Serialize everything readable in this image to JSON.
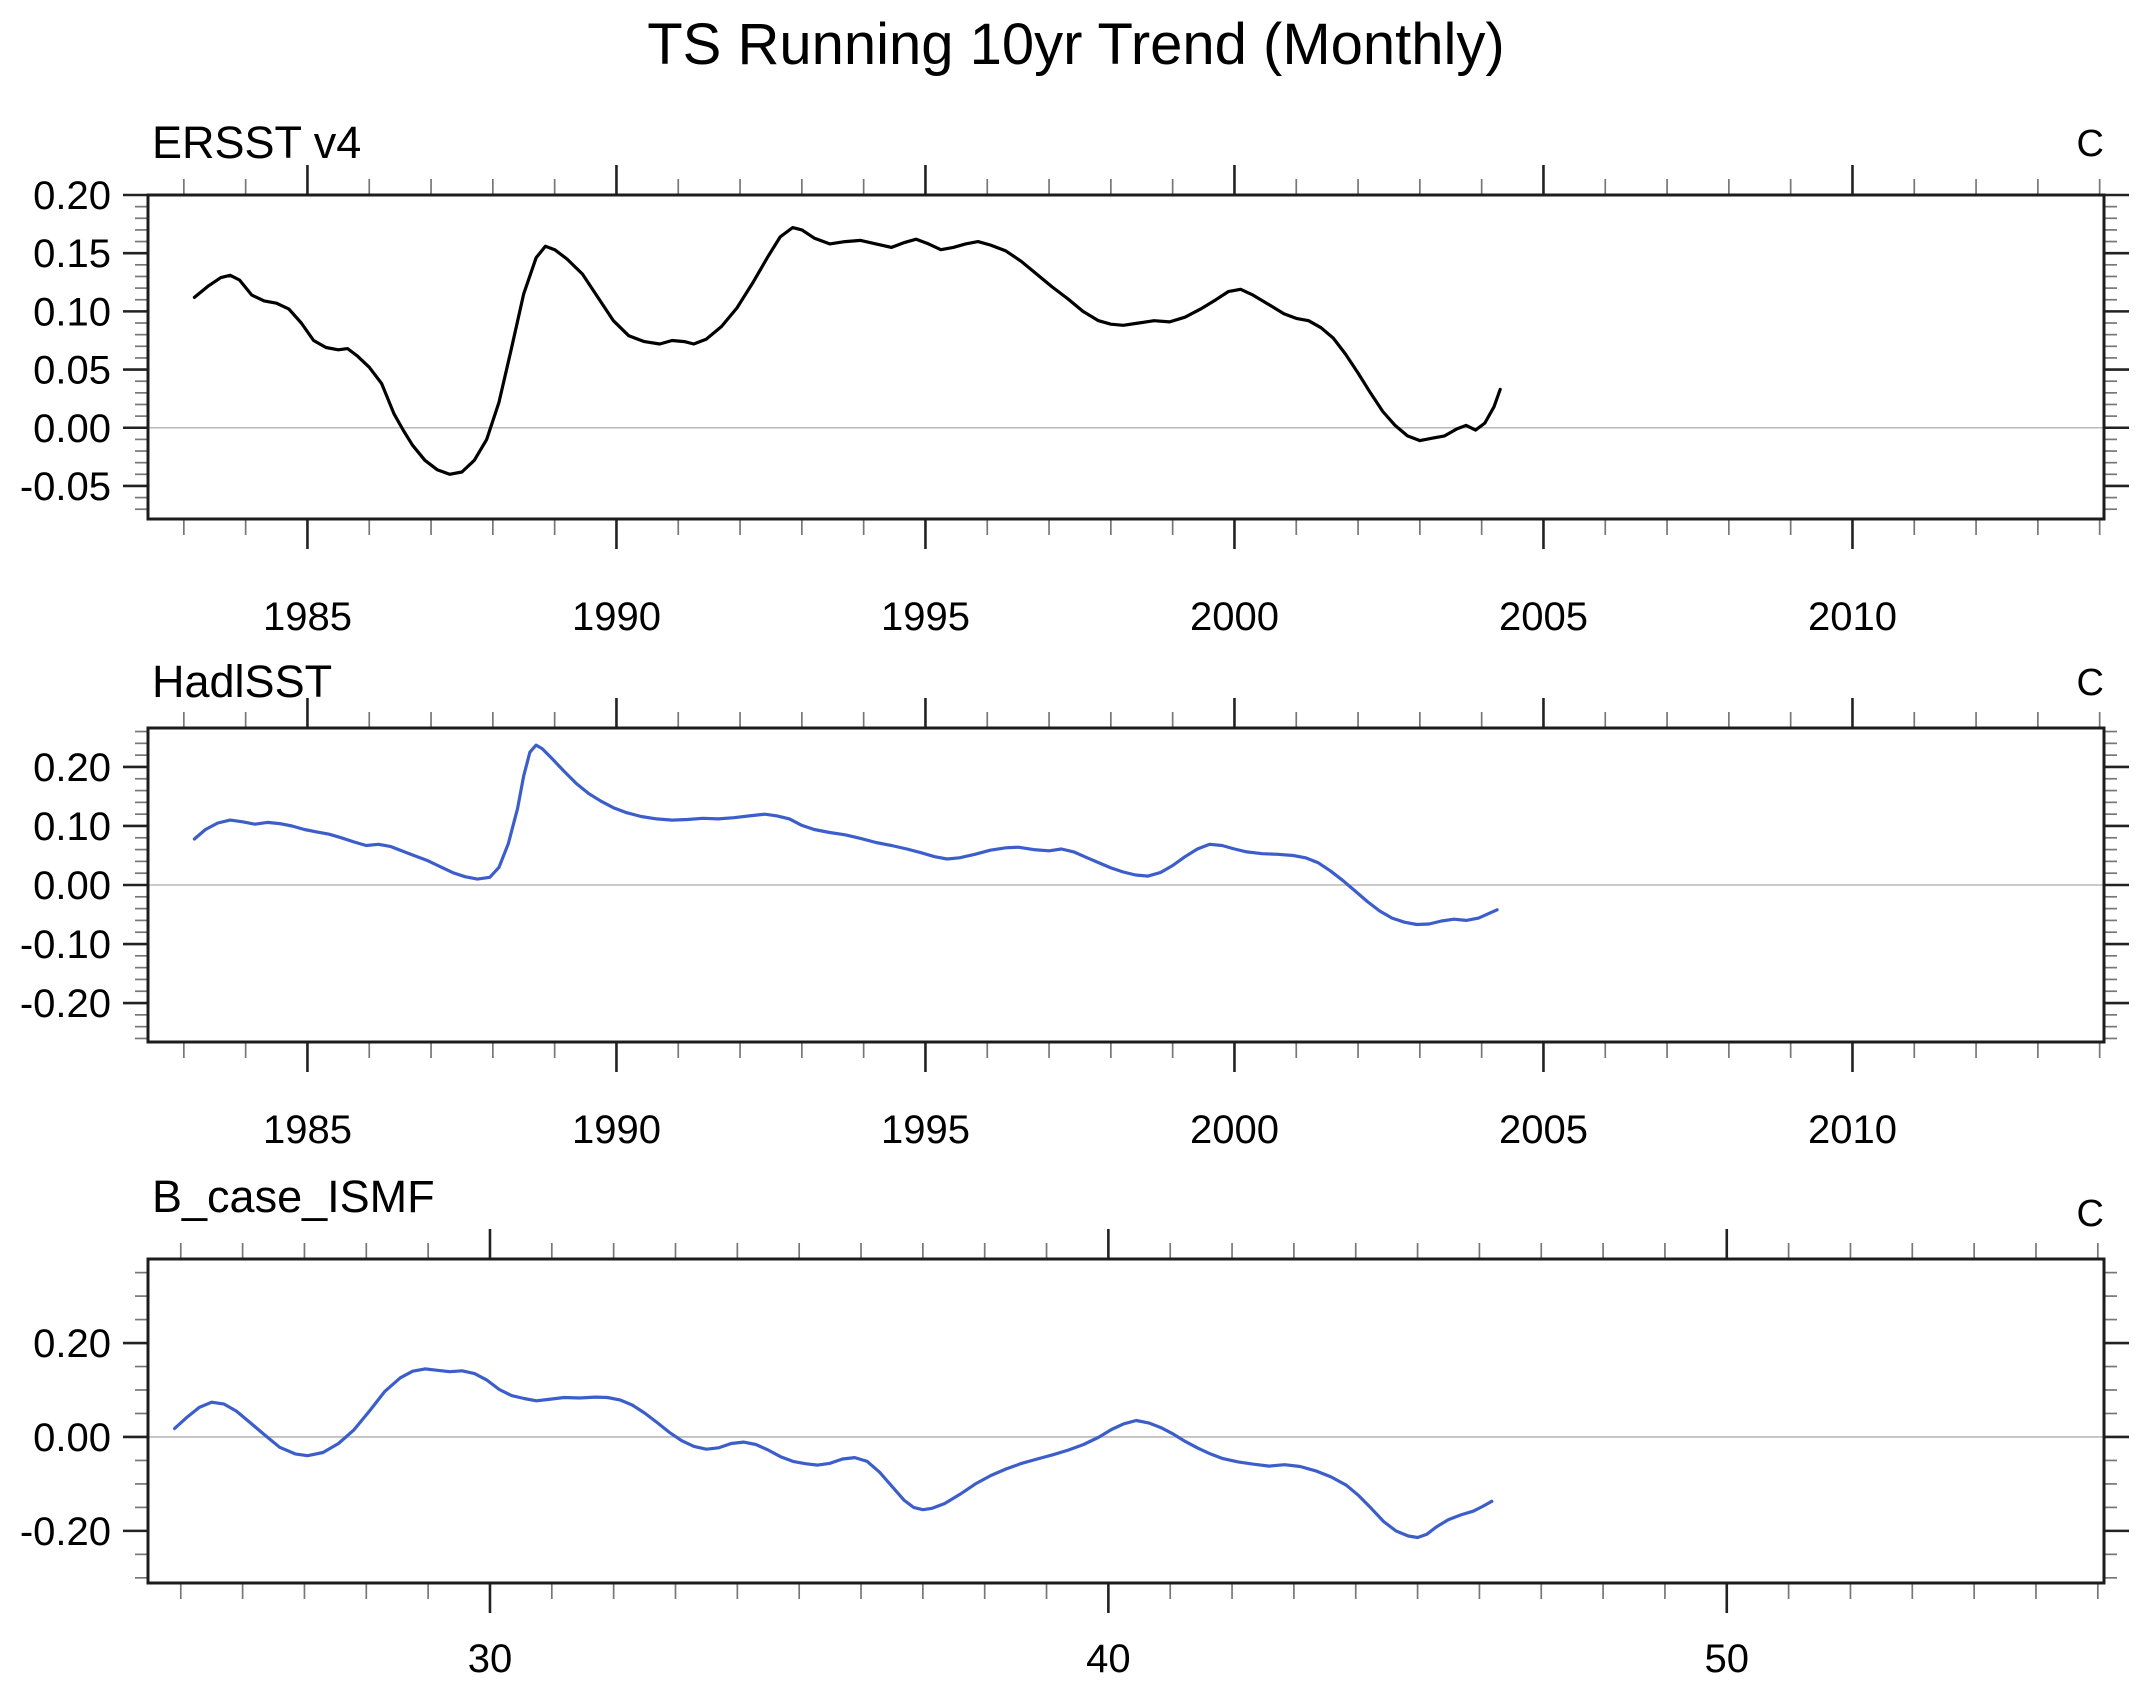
{
  "figure_title": "TS Running 10yr Trend (Monthly)",
  "colors": {
    "axis": "#1c1c1c",
    "major_tick": "#222222",
    "minor_tick": "#777777",
    "zero_line": "#b9b9b9",
    "obs_black": "#000000",
    "model_blue": "#3c5ecb",
    "background": "#ffffff"
  },
  "chart_data": [
    {
      "type": "line",
      "title": "ERSST v4",
      "units": "C",
      "line_color": "#000000",
      "legend_position": "none",
      "grid": false,
      "xlim": [
        1982.42,
        2014.07
      ],
      "ylim": [
        -0.0784,
        0.2
      ],
      "xtick_values": [
        1985,
        1990,
        1995,
        2000,
        2005,
        2010
      ],
      "xtick_labels": [
        "1985",
        "1990",
        "1995",
        "2000",
        "2005",
        "2010"
      ],
      "xtick_minor_step": 1,
      "ytick_values": [
        0.2,
        0.15,
        0.1,
        0.05,
        0.0,
        -0.05
      ],
      "ytick_labels": [
        "0.20",
        "0.15",
        "0.10",
        "0.05",
        "0.00",
        "-0.05"
      ],
      "ytick_minor_step": 0.01,
      "zero_line": true,
      "x": [
        1983.17,
        1983.4,
        1983.6,
        1983.75,
        1983.9,
        1984.1,
        1984.3,
        1984.5,
        1984.7,
        1984.9,
        1985.1,
        1985.3,
        1985.5,
        1985.65,
        1985.8,
        1986.0,
        1986.2,
        1986.4,
        1986.55,
        1986.7,
        1986.9,
        1987.1,
        1987.3,
        1987.5,
        1987.7,
        1987.9,
        1988.1,
        1988.3,
        1988.5,
        1988.7,
        1988.85,
        1989.0,
        1989.2,
        1989.45,
        1989.7,
        1989.95,
        1990.2,
        1990.45,
        1990.7,
        1990.9,
        1991.1,
        1991.25,
        1991.45,
        1991.7,
        1991.95,
        1992.2,
        1992.45,
        1992.65,
        1992.85,
        1993.0,
        1993.2,
        1993.45,
        1993.7,
        1993.95,
        1994.2,
        1994.45,
        1994.65,
        1994.85,
        1995.05,
        1995.25,
        1995.45,
        1995.65,
        1995.85,
        1996.05,
        1996.3,
        1996.55,
        1996.8,
        1997.05,
        1997.3,
        1997.55,
        1997.8,
        1998.0,
        1998.2,
        1998.45,
        1998.7,
        1998.95,
        1999.2,
        1999.45,
        1999.7,
        1999.9,
        2000.1,
        2000.3,
        2000.55,
        2000.8,
        2001.0,
        2001.2,
        2001.4,
        2001.6,
        2001.8,
        2002.0,
        2002.2,
        2002.4,
        2002.6,
        2002.8,
        2003.0,
        2003.2,
        2003.4,
        2003.6,
        2003.75,
        2003.9,
        2004.05,
        2004.2,
        2004.3
      ],
      "y": [
        0.112,
        0.122,
        0.129,
        0.131,
        0.127,
        0.114,
        0.109,
        0.107,
        0.102,
        0.09,
        0.075,
        0.069,
        0.067,
        0.068,
        0.062,
        0.052,
        0.038,
        0.012,
        -0.002,
        -0.015,
        -0.028,
        -0.036,
        -0.04,
        -0.038,
        -0.028,
        -0.01,
        0.022,
        0.068,
        0.115,
        0.146,
        0.156,
        0.153,
        0.145,
        0.132,
        0.112,
        0.092,
        0.079,
        0.074,
        0.072,
        0.075,
        0.074,
        0.072,
        0.076,
        0.087,
        0.103,
        0.124,
        0.147,
        0.164,
        0.172,
        0.17,
        0.163,
        0.158,
        0.16,
        0.161,
        0.158,
        0.155,
        0.159,
        0.162,
        0.158,
        0.153,
        0.155,
        0.158,
        0.16,
        0.157,
        0.152,
        0.143,
        0.132,
        0.121,
        0.111,
        0.1,
        0.092,
        0.089,
        0.088,
        0.09,
        0.092,
        0.091,
        0.095,
        0.102,
        0.11,
        0.117,
        0.119,
        0.114,
        0.106,
        0.098,
        0.094,
        0.092,
        0.086,
        0.077,
        0.063,
        0.047,
        0.03,
        0.014,
        0.002,
        -0.007,
        -0.011,
        -0.009,
        -0.007,
        -0.001,
        0.002,
        -0.002,
        0.004,
        0.018,
        0.033
      ]
    },
    {
      "type": "line",
      "title": "HadlSST",
      "units": "C",
      "line_color": "#3c5ecb",
      "legend_position": "none",
      "grid": false,
      "xlim": [
        1982.42,
        2014.07
      ],
      "ylim": [
        -0.266,
        0.266
      ],
      "xtick_values": [
        1985,
        1990,
        1995,
        2000,
        2005,
        2010
      ],
      "xtick_labels": [
        "1985",
        "1990",
        "1995",
        "2000",
        "2005",
        "2010"
      ],
      "xtick_minor_step": 1,
      "ytick_values": [
        0.2,
        0.1,
        0.0,
        -0.1,
        -0.2
      ],
      "ytick_labels": [
        "0.20",
        "0.10",
        "0.00",
        "-0.10",
        "-0.20"
      ],
      "ytick_minor_step": 0.02,
      "zero_line": true,
      "x": [
        1983.17,
        1983.35,
        1983.55,
        1983.75,
        1983.95,
        1984.15,
        1984.35,
        1984.55,
        1984.75,
        1984.95,
        1985.15,
        1985.35,
        1985.55,
        1985.75,
        1985.95,
        1986.15,
        1986.35,
        1986.55,
        1986.75,
        1986.95,
        1987.15,
        1987.35,
        1987.55,
        1987.75,
        1987.95,
        1988.1,
        1988.25,
        1988.4,
        1988.5,
        1988.6,
        1988.7,
        1988.8,
        1988.95,
        1989.15,
        1989.35,
        1989.55,
        1989.75,
        1989.95,
        1990.15,
        1990.4,
        1990.65,
        1990.9,
        1991.15,
        1991.4,
        1991.65,
        1991.9,
        1992.15,
        1992.4,
        1992.6,
        1992.8,
        1993.0,
        1993.2,
        1993.45,
        1993.7,
        1993.95,
        1994.2,
        1994.45,
        1994.7,
        1994.95,
        1995.15,
        1995.35,
        1995.55,
        1995.8,
        1996.05,
        1996.3,
        1996.5,
        1996.75,
        1997.0,
        1997.2,
        1997.4,
        1997.6,
        1997.8,
        1998.0,
        1998.2,
        1998.4,
        1998.6,
        1998.8,
        1999.0,
        1999.2,
        1999.4,
        1999.6,
        1999.8,
        2000.0,
        2000.2,
        2000.45,
        2000.7,
        2000.95,
        2001.15,
        2001.35,
        2001.55,
        2001.75,
        2001.95,
        2002.15,
        2002.35,
        2002.55,
        2002.75,
        2002.95,
        2003.15,
        2003.35,
        2003.55,
        2003.75,
        2003.95,
        2004.1,
        2004.25
      ],
      "y": [
        0.078,
        0.094,
        0.105,
        0.11,
        0.107,
        0.103,
        0.106,
        0.104,
        0.1,
        0.094,
        0.09,
        0.086,
        0.08,
        0.073,
        0.067,
        0.069,
        0.065,
        0.057,
        0.049,
        0.041,
        0.031,
        0.021,
        0.014,
        0.01,
        0.013,
        0.03,
        0.07,
        0.13,
        0.185,
        0.225,
        0.237,
        0.231,
        0.215,
        0.193,
        0.172,
        0.155,
        0.142,
        0.131,
        0.123,
        0.116,
        0.112,
        0.11,
        0.111,
        0.113,
        0.112,
        0.114,
        0.117,
        0.12,
        0.117,
        0.112,
        0.101,
        0.094,
        0.089,
        0.085,
        0.079,
        0.072,
        0.067,
        0.061,
        0.054,
        0.048,
        0.044,
        0.046,
        0.052,
        0.059,
        0.063,
        0.064,
        0.06,
        0.058,
        0.061,
        0.056,
        0.047,
        0.038,
        0.029,
        0.022,
        0.017,
        0.015,
        0.021,
        0.033,
        0.048,
        0.061,
        0.069,
        0.067,
        0.061,
        0.056,
        0.053,
        0.052,
        0.05,
        0.046,
        0.038,
        0.024,
        0.008,
        -0.01,
        -0.028,
        -0.044,
        -0.056,
        -0.063,
        -0.067,
        -0.066,
        -0.061,
        -0.058,
        -0.06,
        -0.056,
        -0.049,
        -0.042
      ]
    },
    {
      "type": "line",
      "title": "B_case_ISMF",
      "units": "C",
      "line_color": "#3c5ecb",
      "legend_position": "none",
      "grid": false,
      "xlim": [
        24.47,
        56.1
      ],
      "ylim": [
        -0.311,
        0.379
      ],
      "xtick_values": [
        30,
        40,
        50
      ],
      "xtick_labels": [
        "30",
        "40",
        "50"
      ],
      "xtick_minor_step": 1,
      "ytick_values": [
        0.2,
        0.0,
        -0.2
      ],
      "ytick_labels": [
        "0.20",
        "0.00",
        "-0.20"
      ],
      "ytick_minor_step": 0.05,
      "zero_line": true,
      "x": [
        24.9,
        25.1,
        25.3,
        25.5,
        25.7,
        25.9,
        26.1,
        26.35,
        26.6,
        26.85,
        27.05,
        27.3,
        27.55,
        27.8,
        28.05,
        28.3,
        28.55,
        28.75,
        28.95,
        29.15,
        29.35,
        29.55,
        29.75,
        29.95,
        30.15,
        30.35,
        30.55,
        30.75,
        30.95,
        31.2,
        31.45,
        31.7,
        31.9,
        32.1,
        32.3,
        32.5,
        32.7,
        32.9,
        33.1,
        33.3,
        33.5,
        33.7,
        33.9,
        34.1,
        34.3,
        34.5,
        34.7,
        34.9,
        35.1,
        35.3,
        35.5,
        35.7,
        35.9,
        36.1,
        36.3,
        36.5,
        36.7,
        36.85,
        37.0,
        37.15,
        37.35,
        37.6,
        37.85,
        38.1,
        38.35,
        38.6,
        38.85,
        39.1,
        39.35,
        39.6,
        39.85,
        40.05,
        40.25,
        40.45,
        40.65,
        40.85,
        41.05,
        41.25,
        41.45,
        41.65,
        41.85,
        42.1,
        42.35,
        42.6,
        42.85,
        43.1,
        43.35,
        43.6,
        43.85,
        44.05,
        44.25,
        44.45,
        44.65,
        44.85,
        45.0,
        45.15,
        45.3,
        45.5,
        45.7,
        45.9,
        46.05,
        46.2
      ],
      "y": [
        0.018,
        0.042,
        0.063,
        0.074,
        0.07,
        0.055,
        0.033,
        0.005,
        -0.022,
        -0.036,
        -0.04,
        -0.033,
        -0.014,
        0.015,
        0.055,
        0.097,
        0.126,
        0.14,
        0.145,
        0.142,
        0.139,
        0.141,
        0.135,
        0.121,
        0.101,
        0.088,
        0.082,
        0.077,
        0.08,
        0.084,
        0.083,
        0.085,
        0.084,
        0.079,
        0.068,
        0.051,
        0.031,
        0.01,
        -0.008,
        -0.02,
        -0.026,
        -0.023,
        -0.014,
        -0.011,
        -0.016,
        -0.028,
        -0.042,
        -0.052,
        -0.057,
        -0.06,
        -0.056,
        -0.047,
        -0.044,
        -0.052,
        -0.075,
        -0.105,
        -0.135,
        -0.15,
        -0.155,
        -0.152,
        -0.142,
        -0.122,
        -0.1,
        -0.082,
        -0.068,
        -0.056,
        -0.047,
        -0.038,
        -0.028,
        -0.016,
        0.0,
        0.016,
        0.028,
        0.035,
        0.03,
        0.02,
        0.006,
        -0.01,
        -0.024,
        -0.036,
        -0.046,
        -0.053,
        -0.058,
        -0.062,
        -0.059,
        -0.063,
        -0.072,
        -0.085,
        -0.103,
        -0.125,
        -0.152,
        -0.18,
        -0.2,
        -0.211,
        -0.214,
        -0.207,
        -0.192,
        -0.176,
        -0.166,
        -0.158,
        -0.148,
        -0.137
      ]
    }
  ]
}
